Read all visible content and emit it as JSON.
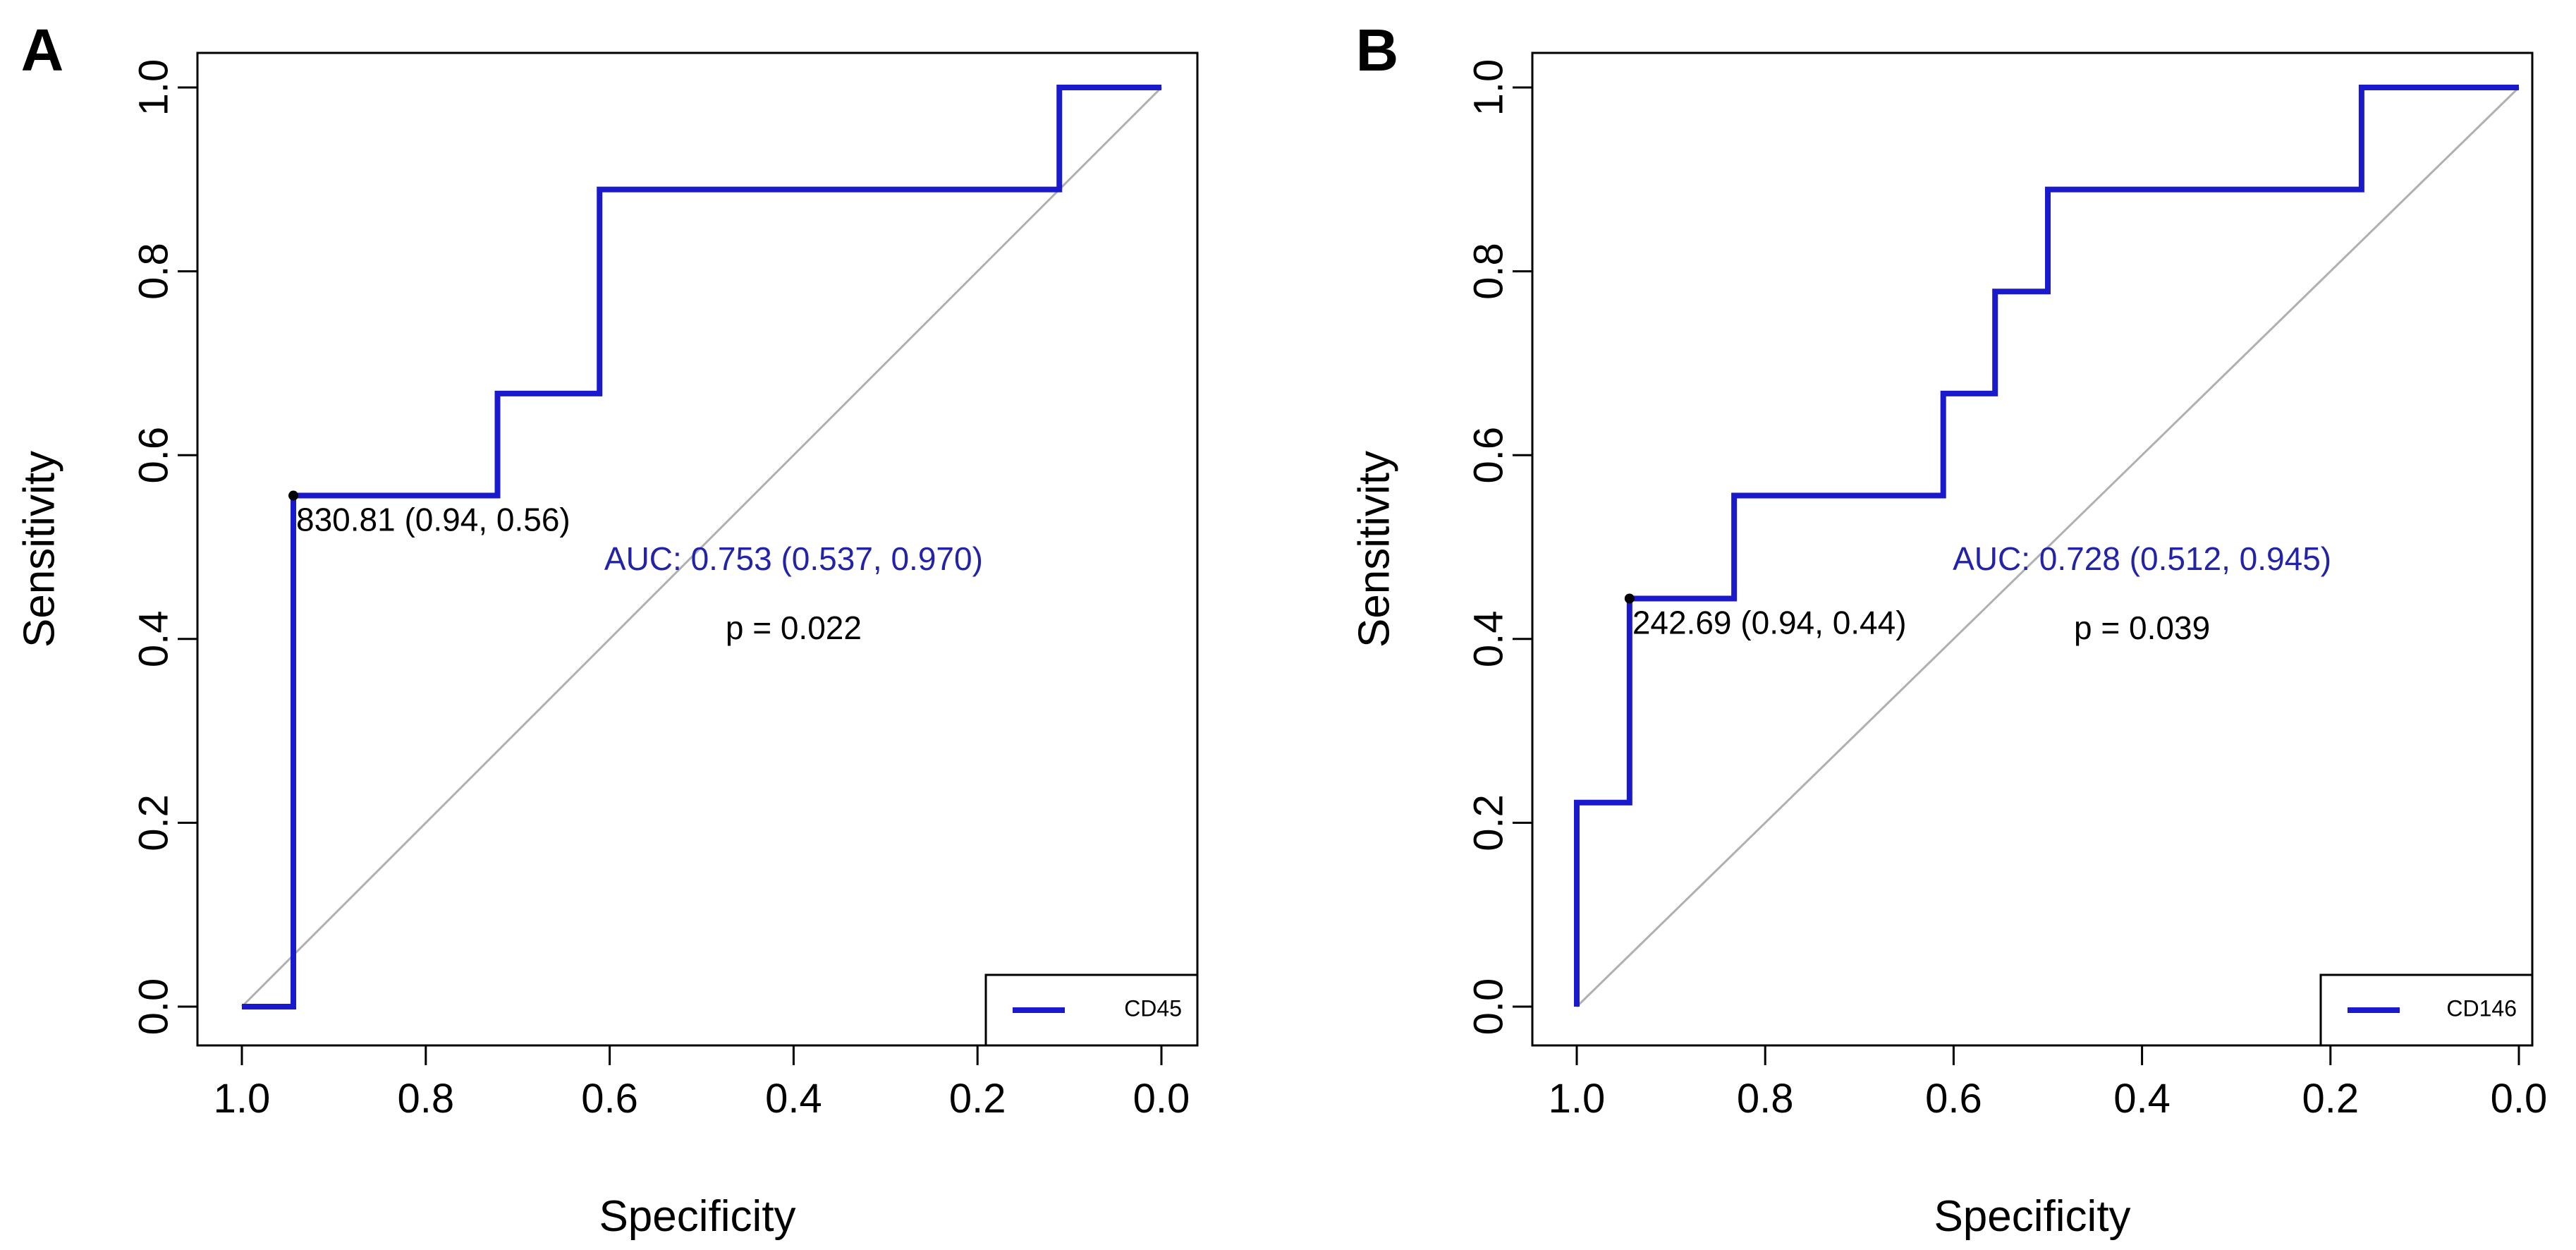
{
  "chart_data": [
    {
      "panel_label": "A",
      "type": "line",
      "title": "",
      "xlabel": "Specificity",
      "ylabel": "Sensitivity",
      "xlim": [
        1.0,
        0.0
      ],
      "ylim": [
        0.0,
        1.0
      ],
      "x_ticks": [
        "1.0",
        "0.8",
        "0.6",
        "0.4",
        "0.2",
        "0.0"
      ],
      "y_ticks": [
        "0.0",
        "0.2",
        "0.4",
        "0.6",
        "0.8",
        "1.0"
      ],
      "grid": false,
      "curve": {
        "specificity": [
          1.0,
          0.944,
          0.944,
          0.722,
          0.722,
          0.611,
          0.611,
          0.111,
          0.111,
          0.0
        ],
        "sensitivity": [
          0.0,
          0.0,
          0.556,
          0.556,
          0.667,
          0.667,
          0.889,
          0.889,
          1.0,
          1.0
        ],
        "color": "#1a1acc"
      },
      "reference_line": {
        "from": [
          1.0,
          0.0
        ],
        "to": [
          0.0,
          1.0
        ],
        "color": "#b0b0b0"
      },
      "threshold_point": {
        "specificity": 0.944,
        "sensitivity": 0.556,
        "label": "830.81 (0.94, 0.56)"
      },
      "auc_text": "AUC: 0.753 (0.537, 0.970)",
      "auc_color": "#2222aa",
      "p_text": "p = 0.022",
      "legend": {
        "position": "bottom-right",
        "entries": [
          "CD45"
        ]
      }
    },
    {
      "panel_label": "B",
      "type": "line",
      "title": "",
      "xlabel": "Specificity",
      "ylabel": "Sensitivity",
      "xlim": [
        1.0,
        0.0
      ],
      "ylim": [
        0.0,
        1.0
      ],
      "x_ticks": [
        "1.0",
        "0.8",
        "0.6",
        "0.4",
        "0.2",
        "0.0"
      ],
      "y_ticks": [
        "0.0",
        "0.2",
        "0.4",
        "0.6",
        "0.8",
        "1.0"
      ],
      "grid": false,
      "curve": {
        "specificity": [
          1.0,
          1.0,
          0.944,
          0.944,
          0.833,
          0.833,
          0.611,
          0.611,
          0.556,
          0.556,
          0.5,
          0.5,
          0.167,
          0.167,
          0.0
        ],
        "sensitivity": [
          0.0,
          0.222,
          0.222,
          0.444,
          0.444,
          0.556,
          0.556,
          0.667,
          0.667,
          0.778,
          0.778,
          0.889,
          0.889,
          1.0,
          1.0
        ],
        "color": "#1a1acc"
      },
      "reference_line": {
        "from": [
          1.0,
          0.0
        ],
        "to": [
          0.0,
          1.0
        ],
        "color": "#b0b0b0"
      },
      "threshold_point": {
        "specificity": 0.944,
        "sensitivity": 0.444,
        "label": "242.69 (0.94, 0.44)"
      },
      "auc_text": "AUC: 0.728 (0.512, 0.945)",
      "auc_color": "#2222aa",
      "p_text": "p = 0.039",
      "legend": {
        "position": "bottom-right",
        "entries": [
          "CD146"
        ]
      }
    }
  ]
}
